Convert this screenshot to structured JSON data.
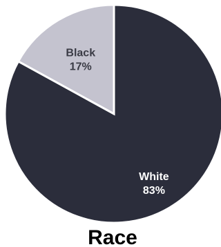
{
  "chart_data": {
    "type": "pie",
    "title": "Race",
    "slices": [
      {
        "label": "White",
        "value": 83,
        "value_label": "83%",
        "color": "#2b2d3b",
        "label_color": "#ffffff"
      },
      {
        "label": "Black",
        "value": 17,
        "value_label": "17%",
        "color": "#c4c3cf",
        "label_color": "#3a3b45"
      }
    ],
    "start_angle_deg": 0,
    "direction": "clockwise",
    "slice_border_color": "#ffffff"
  }
}
